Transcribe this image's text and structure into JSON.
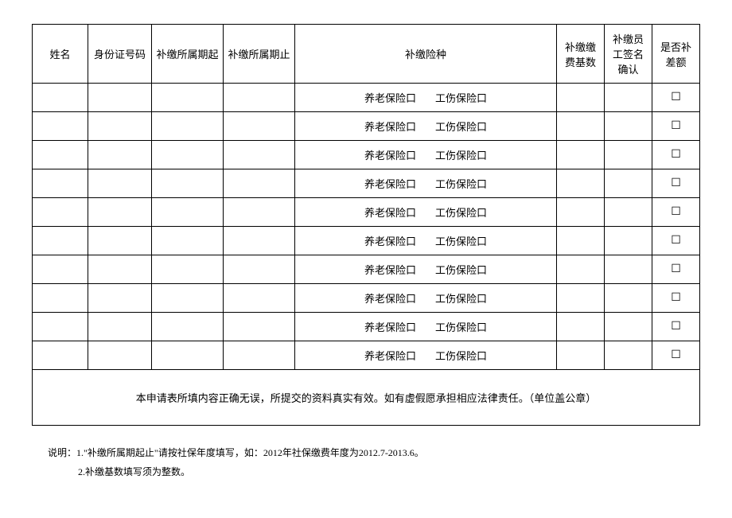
{
  "headers": {
    "name": "姓名",
    "id": "身份证号码",
    "period_start": "补缴所属期起",
    "period_end": "补缴所属期止",
    "insurance_type": "补缴险种",
    "base": "补缴缴费基数",
    "sign": "补缴员工签名确认",
    "diff": "是否补差额"
  },
  "insurance_options": {
    "pension": "养老保险口",
    "injury": "工伤保险口"
  },
  "checkbox_glyph": "☐",
  "row_count": 10,
  "declaration": "本申请表所填内容正确无误，所提交的资料真实有效。如有虚假愿承担相应法律责任。（单位盖公章）",
  "notes": {
    "prefix": "说明：",
    "line1": "1.\"补缴所属期起止\"请按社保年度填写，如：2012年社保缴费年度为2012.7-2013.6。",
    "line2": "2.补缴基数填写须为整数。"
  },
  "colors": {
    "border": "#000000",
    "text": "#000000",
    "background": "#ffffff"
  }
}
